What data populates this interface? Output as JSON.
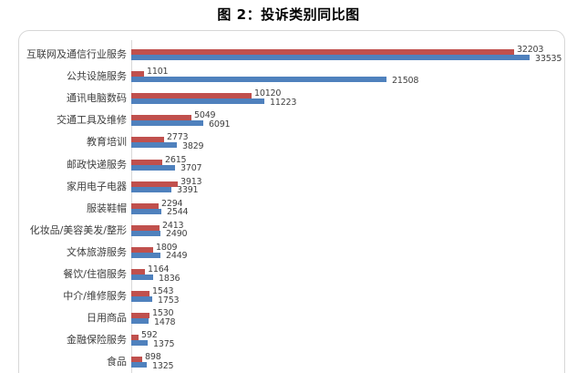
{
  "title": "图 2：投诉类别同比图",
  "colors": {
    "series_red": "#c0504d",
    "series_blue": "#4f81bd",
    "box_border": "#d7d7d7",
    "axis_line": "#d9d9d9",
    "label_text": "#3f3f3f",
    "title_text": "#000000"
  },
  "chart_data": {
    "type": "bar",
    "orientation": "horizontal",
    "title": "图 2：投诉类别同比图",
    "xlabel": "",
    "ylabel": "",
    "legend": "none",
    "grid": false,
    "value_labels": true,
    "xlim": [
      0,
      35000
    ],
    "categories": [
      "互联网及通信行业服务",
      "公共设施服务",
      "通讯电脑数码",
      "交通工具及维修",
      "教育培训",
      "邮政快递服务",
      "家用电子电器",
      "服装鞋帽",
      "化妆品/美容美发/整形",
      "文体旅游服务",
      "餐饮/住宿服务",
      "中介/维修服务",
      "日用商品",
      "金融保险服务",
      "食品"
    ],
    "series": [
      {
        "name": "series-red",
        "color": "#c0504d",
        "values": [
          32203,
          1101,
          10120,
          5049,
          2773,
          2615,
          3913,
          2294,
          2413,
          1809,
          1164,
          1543,
          1530,
          592,
          898
        ]
      },
      {
        "name": "series-blue",
        "color": "#4f81bd",
        "values": [
          33535,
          21508,
          11223,
          6091,
          3829,
          3707,
          3391,
          2544,
          2490,
          2449,
          1836,
          1753,
          1478,
          1375,
          1325
        ]
      }
    ]
  }
}
